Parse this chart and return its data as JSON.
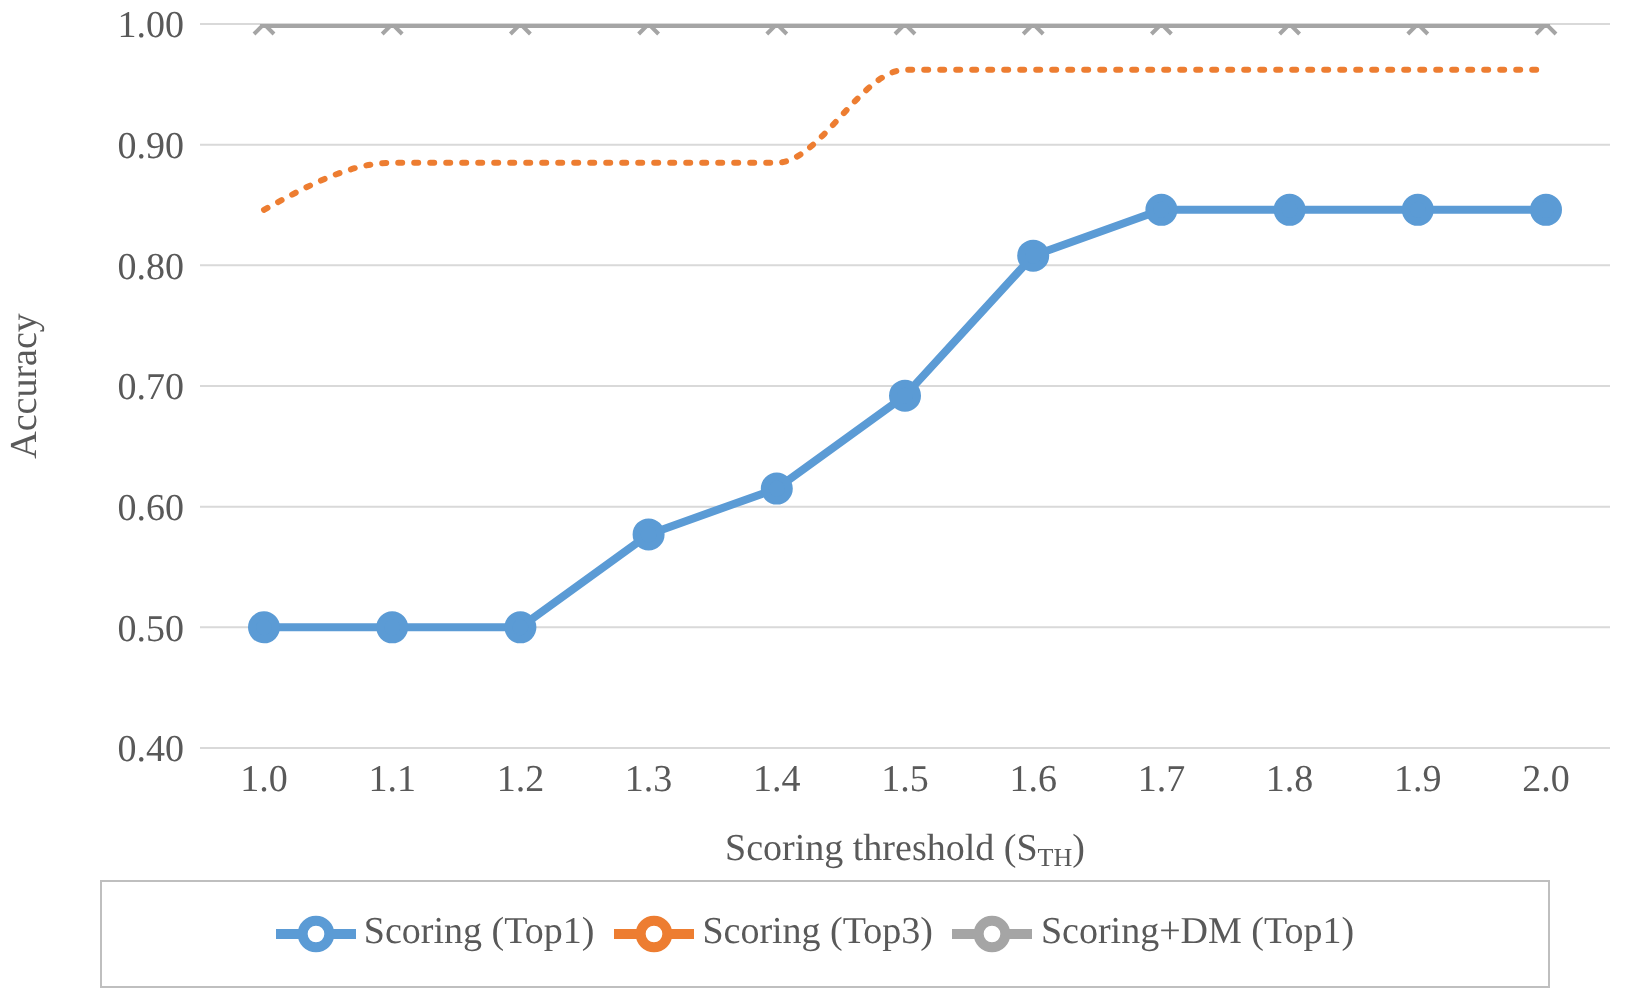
{
  "chart_data": {
    "type": "line",
    "xlabel": "Scoring threshold (S$_{TH}$)",
    "ylabel": "Accuracy",
    "categories": [
      "1.0",
      "1.1",
      "1.2",
      "1.3",
      "1.4",
      "1.5",
      "1.6",
      "1.7",
      "1.8",
      "1.9",
      "2.0"
    ],
    "series": [
      {
        "name": "Scoring (Top1)",
        "color": "#5b9bd5",
        "marker": "circle",
        "line_style": "solid",
        "values": [
          0.5,
          0.5,
          0.5,
          0.577,
          0.615,
          0.692,
          0.808,
          0.846,
          0.846,
          0.846,
          0.846
        ]
      },
      {
        "name": "Scoring (Top3)",
        "color": "#ed7d31",
        "marker": "none",
        "line_style": "dotted",
        "values": [
          0.846,
          0.885,
          0.885,
          0.885,
          0.885,
          0.962,
          0.962,
          0.962,
          0.962,
          0.962,
          0.962
        ]
      },
      {
        "name": "Scoring+DM (Top1)",
        "color": "#a5a5a5",
        "marker": "cross",
        "line_style": "solid",
        "values": [
          1,
          1,
          1,
          1,
          1,
          1,
          1,
          1,
          1,
          1,
          1
        ]
      }
    ],
    "ylim": [
      0.4,
      1.0
    ],
    "yticks": [
      {
        "value": 0.4,
        "label": "0.40"
      },
      {
        "value": 0.5,
        "label": "0.50"
      },
      {
        "value": 0.6,
        "label": "0.60"
      },
      {
        "value": 0.7,
        "label": "0.70"
      },
      {
        "value": 0.8,
        "label": "0.80"
      },
      {
        "value": 0.9,
        "label": "0.90"
      },
      {
        "value": 1.0,
        "label": "1.00"
      }
    ],
    "grid": "y",
    "legend": "bottom"
  }
}
